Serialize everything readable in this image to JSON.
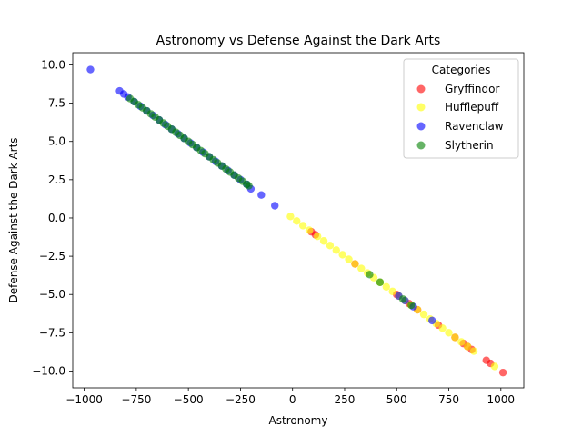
{
  "chart_data": {
    "type": "scatter",
    "title": "Astronomy vs Defense Against the Dark Arts",
    "xlabel": "Astronomy",
    "ylabel": "Defense Against the Dark Arts",
    "xlim": [
      -1055,
      1110
    ],
    "ylim": [
      -11.1,
      10.8
    ],
    "xticks": [
      -1000,
      -750,
      -500,
      -250,
      0,
      250,
      500,
      750,
      1000
    ],
    "xtick_labels": [
      "−1000",
      "−750",
      "−500",
      "−250",
      "0",
      "250",
      "500",
      "750",
      "1000"
    ],
    "yticks": [
      -10.0,
      -7.5,
      -5.0,
      -2.5,
      0.0,
      2.5,
      5.0,
      7.5,
      10.0
    ],
    "ytick_labels": [
      "−10.0",
      "−7.5",
      "−5.0",
      "−2.5",
      "0.0",
      "2.5",
      "5.0",
      "7.5",
      "10.0"
    ],
    "grid": false,
    "legend": {
      "title": "Categories",
      "placement": "top-right"
    },
    "series": [
      {
        "name": "Gryffindor",
        "color": "#ff0000",
        "x": [
          90,
          110,
          300,
          500,
          560,
          600,
          700,
          780,
          820,
          840,
          860,
          930,
          950,
          1010
        ],
        "y": [
          -0.9,
          -1.1,
          -3.0,
          -5.0,
          -5.6,
          -6.0,
          -7.0,
          -7.8,
          -8.2,
          -8.4,
          -8.6,
          -9.3,
          -9.5,
          -10.1
        ]
      },
      {
        "name": "Hufflepuff",
        "color": "#ffff00",
        "x": [
          -10,
          20,
          50,
          80,
          120,
          150,
          180,
          210,
          240,
          270,
          300,
          330,
          360,
          390,
          420,
          450,
          480,
          510,
          540,
          570,
          600,
          630,
          660,
          690,
          720,
          750,
          780,
          810,
          840,
          870,
          970
        ],
        "y": [
          0.1,
          -0.2,
          -0.5,
          -0.8,
          -1.2,
          -1.5,
          -1.8,
          -2.1,
          -2.4,
          -2.7,
          -3.0,
          -3.3,
          -3.6,
          -3.9,
          -4.2,
          -4.5,
          -4.8,
          -5.1,
          -5.4,
          -5.7,
          -6.0,
          -6.3,
          -6.6,
          -6.9,
          -7.2,
          -7.5,
          -7.8,
          -8.1,
          -8.4,
          -8.7,
          -9.7
        ]
      },
      {
        "name": "Ravenclaw",
        "color": "#0000ff",
        "x": [
          -970,
          -830,
          -810,
          -790,
          -760,
          -730,
          -700,
          -670,
          -640,
          -610,
          -580,
          -550,
          -520,
          -490,
          -460,
          -430,
          -400,
          -370,
          -340,
          -310,
          -280,
          -250,
          -220,
          -200,
          -150,
          -85,
          510,
          540,
          580,
          670
        ],
        "y": [
          9.7,
          8.3,
          8.1,
          7.9,
          7.6,
          7.3,
          7.0,
          6.7,
          6.4,
          6.1,
          5.8,
          5.5,
          5.2,
          4.9,
          4.6,
          4.3,
          4.0,
          3.7,
          3.4,
          3.1,
          2.8,
          2.5,
          2.2,
          1.9,
          1.5,
          0.8,
          -5.1,
          -5.4,
          -5.8,
          -6.7
        ]
      },
      {
        "name": "Slytherin",
        "color": "#008000",
        "x": [
          -780,
          -760,
          -740,
          -720,
          -700,
          -680,
          -660,
          -640,
          -620,
          -600,
          -580,
          -560,
          -540,
          -520,
          -500,
          -480,
          -460,
          -440,
          -420,
          -400,
          -380,
          -360,
          -340,
          -320,
          -300,
          -280,
          -260,
          -240,
          -220,
          -210,
          370,
          420,
          530,
          570
        ],
        "y": [
          7.8,
          7.6,
          7.4,
          7.2,
          7.0,
          6.8,
          6.6,
          6.4,
          6.2,
          6.0,
          5.8,
          5.6,
          5.4,
          5.2,
          5.0,
          4.8,
          4.6,
          4.4,
          4.2,
          4.0,
          3.8,
          3.6,
          3.4,
          3.2,
          3.0,
          2.8,
          2.6,
          2.4,
          2.2,
          2.1,
          -3.7,
          -4.2,
          -5.3,
          -5.7
        ]
      }
    ]
  }
}
